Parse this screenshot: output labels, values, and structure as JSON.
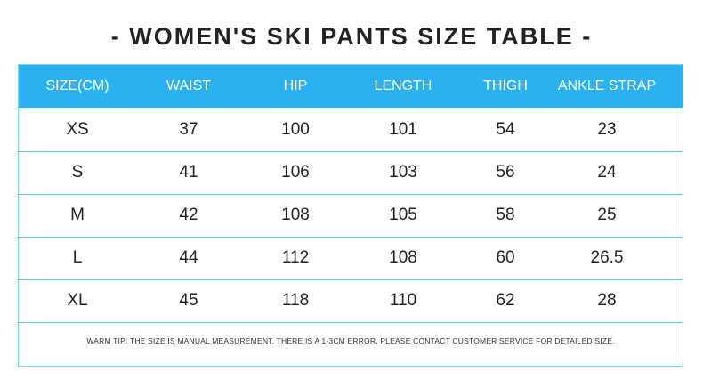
{
  "header": {
    "title": "- WOMEN'S SKI PANTS SIZE TABLE -"
  },
  "table": {
    "columns": [
      "SIZE(CM)",
      "WAIST",
      "HIP",
      "LENGTH",
      "THIGH",
      "ANKLE STRAP"
    ],
    "rows": [
      [
        "XS",
        37,
        100,
        101,
        54,
        23
      ],
      [
        "S",
        41,
        106,
        103,
        56,
        24
      ],
      [
        "M",
        42,
        108,
        105,
        58,
        25
      ],
      [
        "L",
        44,
        112,
        108,
        60,
        26.5
      ],
      [
        "XL",
        45,
        118,
        110,
        62,
        28
      ]
    ],
    "note": "WARM TIP: THE SIZE IS MANUAL MEASUREMENT, THERE IS A 1-3CM ERROR, PLEASE CONTACT CUSTOMER SERVICE FOR DETAILED SIZE."
  }
}
